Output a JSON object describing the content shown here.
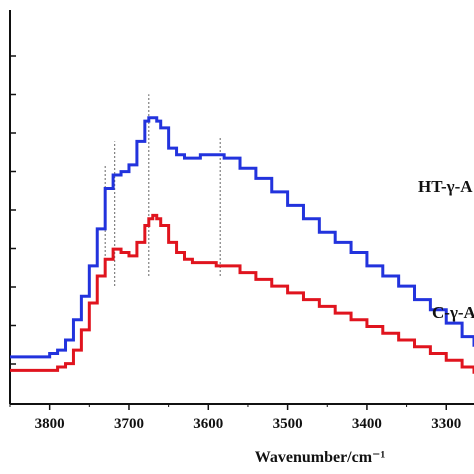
{
  "chart_data": {
    "type": "line",
    "xlabel": "Wavenumber/cm⁻¹",
    "x_reversed": true,
    "xlim": [
      3850,
      3265
    ],
    "x_ticks": [
      3800,
      3700,
      3600,
      3500,
      3400,
      3300
    ],
    "y_ticks_count": 9,
    "y_tick_labels_visible": false,
    "series": [
      {
        "name": "HT-γ-A",
        "color": "#2233dd",
        "style": "step",
        "x": [
          3850,
          3800,
          3790,
          3780,
          3770,
          3760,
          3750,
          3740,
          3730,
          3720,
          3710,
          3700,
          3690,
          3680,
          3675,
          3670,
          3665,
          3660,
          3650,
          3640,
          3630,
          3620,
          3610,
          3600,
          3590,
          3580,
          3560,
          3540,
          3520,
          3500,
          3480,
          3460,
          3440,
          3420,
          3400,
          3380,
          3360,
          3340,
          3320,
          3300,
          3280,
          3265
        ],
        "y": [
          0.02,
          0.03,
          0.04,
          0.07,
          0.13,
          0.2,
          0.29,
          0.4,
          0.52,
          0.56,
          0.57,
          0.59,
          0.66,
          0.72,
          0.73,
          0.73,
          0.72,
          0.7,
          0.64,
          0.62,
          0.61,
          0.61,
          0.62,
          0.62,
          0.62,
          0.61,
          0.58,
          0.55,
          0.51,
          0.47,
          0.43,
          0.39,
          0.36,
          0.33,
          0.29,
          0.26,
          0.23,
          0.19,
          0.16,
          0.12,
          0.08,
          0.05
        ]
      },
      {
        "name": "C-γ-A",
        "color": "#e0141e",
        "style": "step",
        "x": [
          3850,
          3800,
          3790,
          3780,
          3770,
          3760,
          3750,
          3740,
          3730,
          3720,
          3710,
          3700,
          3690,
          3680,
          3675,
          3670,
          3665,
          3660,
          3650,
          3640,
          3630,
          3620,
          3610,
          3600,
          3590,
          3580,
          3560,
          3540,
          3520,
          3500,
          3480,
          3460,
          3440,
          3420,
          3400,
          3380,
          3360,
          3340,
          3320,
          3300,
          3280,
          3265
        ],
        "y": [
          -0.02,
          -0.02,
          -0.01,
          0.0,
          0.04,
          0.1,
          0.18,
          0.26,
          0.31,
          0.34,
          0.33,
          0.32,
          0.36,
          0.41,
          0.43,
          0.44,
          0.43,
          0.41,
          0.36,
          0.33,
          0.31,
          0.3,
          0.3,
          0.3,
          0.29,
          0.29,
          0.27,
          0.25,
          0.23,
          0.21,
          0.19,
          0.17,
          0.15,
          0.13,
          0.11,
          0.09,
          0.07,
          0.05,
          0.03,
          0.01,
          -0.01,
          -0.03
        ]
      }
    ],
    "reference_lines_x": [
      3730,
      3718,
      3675,
      3585
    ],
    "ylim": [
      -0.12,
      1.05
    ]
  },
  "labels": {
    "series_top": "HT-γ-A",
    "series_bottom": "C-γ-A"
  }
}
